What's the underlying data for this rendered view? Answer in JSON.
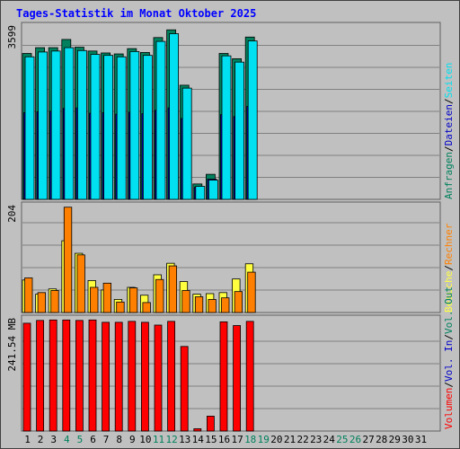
{
  "title": "Tages-Statistik im Monat Oktober 2025",
  "colors": {
    "background": "#c0c0c0",
    "panel": "#c0c0c0",
    "anfragen": "#00805c",
    "dateien": "#0000c8",
    "seiten": "#00e0f0",
    "besuche": "#ffff40",
    "rechner": "#ff8000",
    "vol_out": "#00805c",
    "vol_in": "#0000c8",
    "volumen": "#ff0000",
    "weekend_label": "#00805c",
    "weekday_label": "#000000",
    "title": "#0000ff"
  },
  "chart_data": {
    "type": "bar",
    "categories": [
      "1",
      "2",
      "3",
      "4",
      "5",
      "6",
      "7",
      "8",
      "9",
      "10",
      "11",
      "12",
      "13",
      "14",
      "15",
      "16",
      "17",
      "18",
      "19",
      "20",
      "21",
      "22",
      "23",
      "24",
      "25",
      "26",
      "27",
      "28",
      "29",
      "30",
      "31"
    ],
    "weekend_days": [
      "4",
      "5",
      "11",
      "12",
      "18",
      "19",
      "25",
      "26"
    ],
    "panels": [
      {
        "id": "requests",
        "max_label": "3599",
        "max": 3599,
        "legend": [
          {
            "text": "Anfragen",
            "color": "#00805c"
          },
          {
            "text": "/",
            "color": "#000000"
          },
          {
            "text": "Dateien",
            "color": "#0000c8"
          },
          {
            "text": "/",
            "color": "#000000"
          },
          {
            "text": "Seiten",
            "color": "#00e0f0"
          }
        ],
        "series": [
          {
            "name": "Anfragen",
            "color": "#00805c",
            "values": [
              3030,
              3150,
              3150,
              3320,
              3160,
              3080,
              3040,
              3020,
              3130,
              3050,
              3360,
              3520,
              2370,
              320,
              520,
              3030,
              2920,
              3370,
              null,
              null,
              null,
              null,
              null,
              null,
              null,
              null,
              null,
              null,
              null,
              null,
              null
            ]
          },
          {
            "name": "Dateien",
            "color": "#0000c8",
            "values": [
              1800,
              1820,
              1830,
              1890,
              1900,
              1790,
              1800,
              1770,
              1810,
              1780,
              1850,
              1900,
              1680,
              250,
              420,
              1760,
              1720,
              1930,
              null,
              null,
              null,
              null,
              null,
              null,
              null,
              null,
              null,
              null,
              null,
              null,
              null
            ]
          },
          {
            "name": "Seiten",
            "color": "#00e0f0",
            "values": [
              2960,
              3060,
              3080,
              3150,
              3090,
              3010,
              2990,
              2960,
              3070,
              2990,
              3280,
              3440,
              2310,
              270,
              400,
              2980,
              2850,
              3290,
              null,
              null,
              null,
              null,
              null,
              null,
              null,
              null,
              null,
              null,
              null,
              null,
              null
            ]
          }
        ]
      },
      {
        "id": "visits",
        "max_label": "204",
        "max": 204,
        "legend": [
          {
            "text": "Besuche",
            "color": "#ffff40"
          },
          {
            "text": "/",
            "color": "#000000"
          },
          {
            "text": "Rechner",
            "color": "#ff8000"
          }
        ],
        "series": [
          {
            "name": "Besuche",
            "color": "#ffff40",
            "values": [
              62,
              35,
              45,
              137,
              113,
              61,
              43,
              25,
              48,
              33,
              72,
              94,
              59,
              35,
              36,
              38,
              64,
              93,
              null,
              null,
              null,
              null,
              null,
              null,
              null,
              null,
              null,
              null,
              null,
              null,
              null
            ]
          },
          {
            "name": "Rechner",
            "color": "#ff8000",
            "values": [
              66,
              38,
              42,
              201,
              110,
              48,
              56,
              20,
              47,
              19,
              63,
              89,
              42,
              30,
              25,
              28,
              40,
              77,
              null,
              null,
              null,
              null,
              null,
              null,
              null,
              null,
              null,
              null,
              null,
              null,
              null
            ]
          }
        ]
      },
      {
        "id": "volume",
        "max_label": "241.54 MB",
        "max": 241.54,
        "legend": [
          {
            "text": "Volumen",
            "color": "#ff0000"
          },
          {
            "text": "/",
            "color": "#000000"
          },
          {
            "text": "Vol. In",
            "color": "#0000c8"
          },
          {
            "text": "/",
            "color": "#000000"
          },
          {
            "text": "Vol. Out",
            "color": "#00805c"
          }
        ],
        "series": [
          {
            "name": "Volumen",
            "color": "#ff0000",
            "values": [
              232,
              238,
              239,
              239,
              238,
              239,
              234,
              234,
              236,
              234,
              228,
              236,
              182,
              5,
              32,
              235,
              227,
              236,
              null,
              null,
              null,
              null,
              null,
              null,
              null,
              null,
              null,
              null,
              null,
              null,
              null
            ]
          }
        ]
      }
    ]
  }
}
